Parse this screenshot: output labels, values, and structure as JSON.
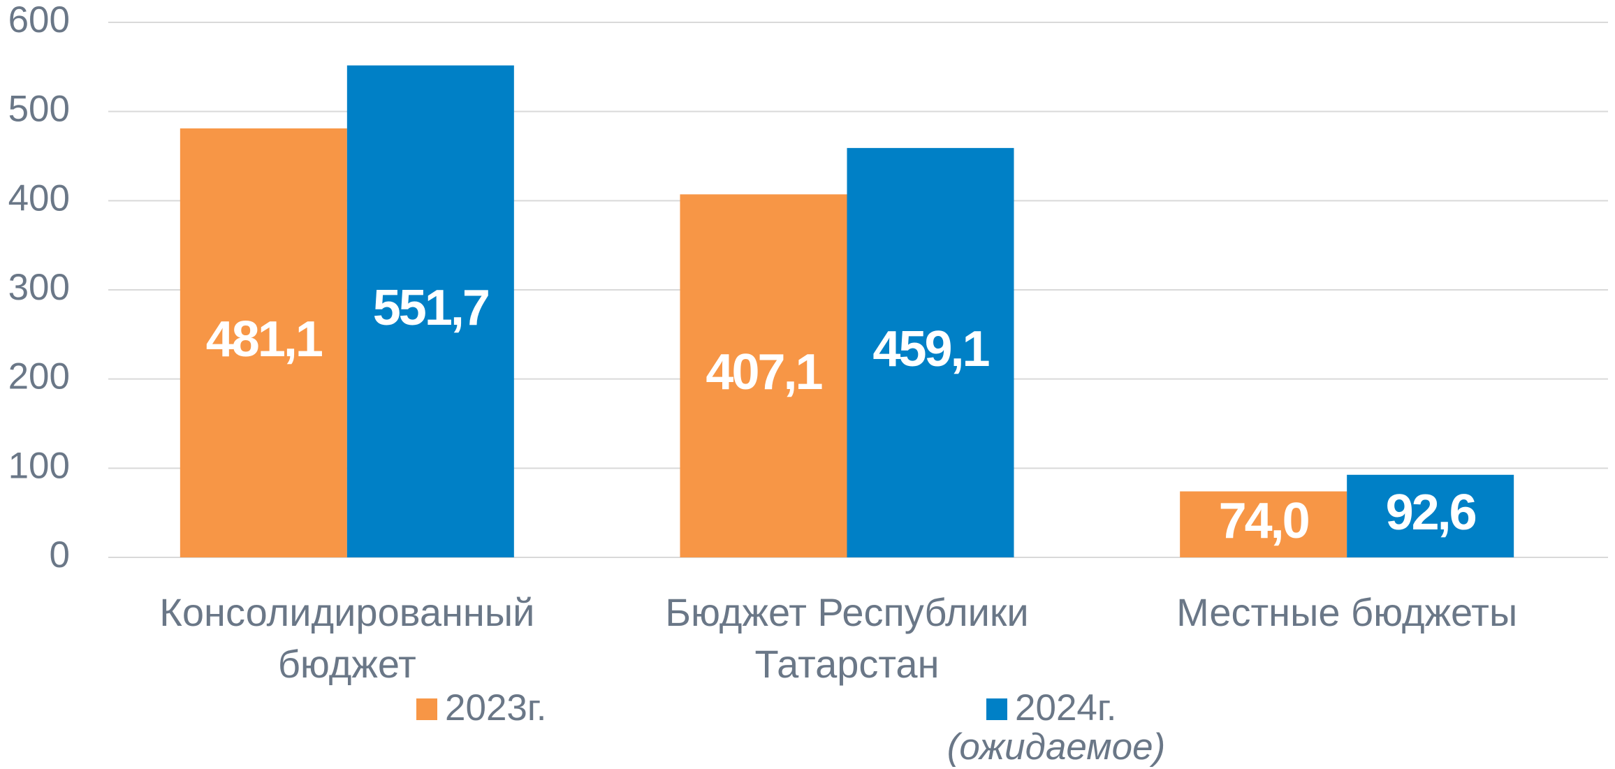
{
  "chart_data": {
    "type": "bar",
    "categories": [
      "Консолидированный бюджет",
      "Бюджет Республики Татарстан",
      "Местные бюджеты"
    ],
    "series": [
      {
        "name": "2023г.",
        "color": "#f79646",
        "values": [
          481.1,
          407.1,
          74.0
        ],
        "value_labels": [
          "481,1",
          "407,1",
          "74,0"
        ]
      },
      {
        "name": "2024г.",
        "note": "(ожидаемое)",
        "color": "#0080c6",
        "values": [
          551.7,
          459.1,
          92.6
        ],
        "value_labels": [
          "551,7",
          "459,1",
          "92,6"
        ]
      }
    ],
    "ylim": [
      0,
      600
    ],
    "yticks": [
      0,
      100,
      200,
      300,
      400,
      500,
      600
    ],
    "grid": true,
    "legend": "bottom"
  }
}
